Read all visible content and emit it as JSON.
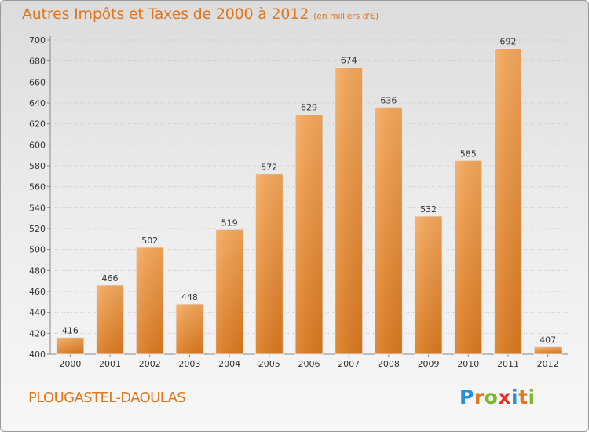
{
  "header": {
    "title": "Autres Impôts et Taxes de 2000 à 2012",
    "subtitle": "(en milliers d'€)"
  },
  "footer": {
    "commune": "PLOUGASTEL-DAOULAS"
  },
  "logo": {
    "letters": [
      "P",
      "r",
      "o",
      "x",
      "i",
      "t",
      "i"
    ],
    "colors": [
      "#2a8fd6",
      "#e07a1f",
      "#7fb82a",
      "#e2342a",
      "#2a8fd6",
      "#e07a1f",
      "#7fb82a"
    ]
  },
  "colors": {
    "bar_light": "#f7a95b",
    "bar_dark": "#dd7a1e",
    "accent": "#e0761e"
  },
  "chart_data": {
    "type": "bar",
    "title": "Autres Impôts et Taxes de 2000 à 2012",
    "subtitle": "(en milliers d'€)",
    "categories": [
      "2000",
      "2001",
      "2002",
      "2003",
      "2004",
      "2005",
      "2006",
      "2007",
      "2008",
      "2009",
      "2010",
      "2011",
      "2012"
    ],
    "values": [
      416,
      466,
      502,
      448,
      519,
      572,
      629,
      674,
      636,
      532,
      585,
      692,
      407
    ],
    "ylim": [
      400,
      700
    ],
    "yticks": [
      400,
      420,
      440,
      460,
      480,
      500,
      520,
      540,
      560,
      580,
      600,
      620,
      640,
      660,
      680,
      700
    ],
    "grid": true,
    "data_labels": true
  }
}
